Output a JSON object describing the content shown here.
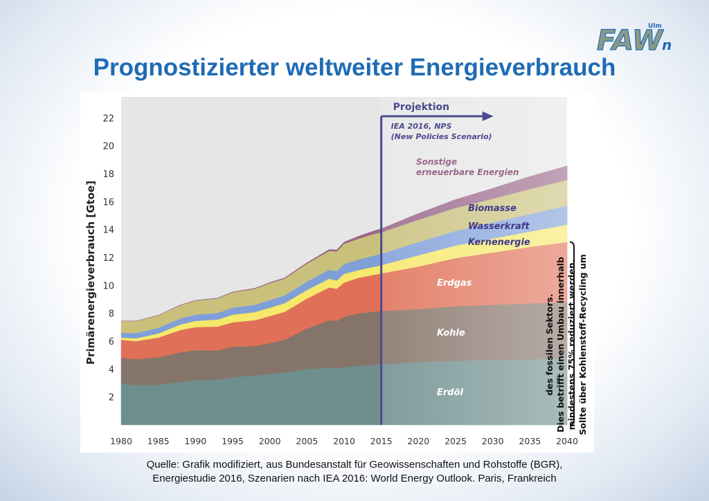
{
  "title": "Prognostizierter weltweiter Energieverbrauch",
  "logo": {
    "text": "FAW",
    "suffix": "n",
    "superscript": "Ulm",
    "color": "#1f6bb5",
    "accent": "#8a9a86"
  },
  "source": {
    "line1": "Quelle: Grafik modifiziert, aus Bundesanstalt für Geowissenschaften und Rohstoffe (BGR),",
    "line2": "Energiestudie 2016, Szenarien nach IEA 2016: World Energy Outlook. Paris, Frankreich"
  },
  "chart_data": {
    "type": "area",
    "stacked": true,
    "ylabel": "Primärenergieverbrauch [Gtoe]",
    "xlabel": "",
    "x": [
      1980,
      1982,
      1985,
      1988,
      1990,
      1993,
      1995,
      1998,
      2000,
      2002,
      2005,
      2008,
      2009,
      2010,
      2012,
      2014,
      2015,
      2020,
      2025,
      2030,
      2035,
      2040
    ],
    "xlim": [
      1980,
      2040
    ],
    "ylim": [
      0,
      23.5
    ],
    "yticks": [
      2,
      4,
      6,
      8,
      10,
      12,
      14,
      16,
      18,
      20,
      22
    ],
    "xticks": [
      1980,
      1985,
      1990,
      1995,
      2000,
      2005,
      2010,
      2015,
      2020,
      2025,
      2030,
      2035,
      2040
    ],
    "grid": false,
    "projection": {
      "start": 2015,
      "label": "Projektion",
      "scenario_line1": "IEA 2016, NPS",
      "scenario_line2": "(New Policies Scenario)",
      "color": "#4a4a8f"
    },
    "series": [
      {
        "name": "Erdöl",
        "color": "#6f8f8e",
        "values": [
          3.0,
          2.85,
          2.85,
          3.1,
          3.2,
          3.25,
          3.4,
          3.55,
          3.65,
          3.75,
          4.0,
          4.1,
          4.0,
          4.15,
          4.25,
          4.3,
          4.35,
          4.5,
          4.6,
          4.65,
          4.7,
          4.75
        ]
      },
      {
        "name": "Kohle",
        "color": "#857469",
        "values": [
          1.8,
          1.85,
          2.0,
          2.1,
          2.15,
          2.1,
          2.2,
          2.1,
          2.2,
          2.35,
          2.9,
          3.4,
          3.45,
          3.6,
          3.75,
          3.8,
          3.8,
          3.8,
          3.9,
          3.95,
          4.0,
          4.05
        ]
      },
      {
        "name": "Erdgas",
        "color": "#e07158",
        "values": [
          1.3,
          1.3,
          1.4,
          1.6,
          1.65,
          1.7,
          1.75,
          1.85,
          1.95,
          2.0,
          2.15,
          2.35,
          2.3,
          2.45,
          2.55,
          2.65,
          2.7,
          3.05,
          3.45,
          3.75,
          4.05,
          4.3
        ]
      },
      {
        "name": "Kernenergie",
        "color": "#f6e86a",
        "values": [
          0.15,
          0.2,
          0.3,
          0.4,
          0.45,
          0.5,
          0.55,
          0.58,
          0.6,
          0.62,
          0.62,
          0.62,
          0.6,
          0.62,
          0.55,
          0.58,
          0.6,
          0.8,
          0.9,
          1.0,
          1.1,
          1.25
        ]
      },
      {
        "name": "Wasserkraft",
        "color": "#7f9fd9",
        "values": [
          0.35,
          0.37,
          0.4,
          0.43,
          0.45,
          0.47,
          0.5,
          0.52,
          0.55,
          0.55,
          0.6,
          0.65,
          0.67,
          0.7,
          0.75,
          0.8,
          0.8,
          0.95,
          1.05,
          1.15,
          1.25,
          1.35
        ]
      },
      {
        "name": "Biomasse",
        "color": "#c9c07c",
        "values": [
          0.85,
          0.87,
          0.9,
          0.95,
          1.0,
          1.05,
          1.1,
          1.15,
          1.2,
          1.22,
          1.28,
          1.35,
          1.4,
          1.45,
          1.5,
          1.55,
          1.55,
          1.6,
          1.65,
          1.7,
          1.8,
          1.85
        ]
      },
      {
        "name": "Sonstige erneuerbare Energien",
        "color": "#9a668a",
        "values": [
          0.0,
          0.0,
          0.01,
          0.02,
          0.02,
          0.03,
          0.03,
          0.04,
          0.05,
          0.05,
          0.07,
          0.1,
          0.12,
          0.13,
          0.18,
          0.22,
          0.25,
          0.45,
          0.6,
          0.75,
          0.9,
          1.0
        ]
      }
    ],
    "series_labels": {
      "sonstige_line1": "Sonstige",
      "sonstige_line2": "erneuerbare Energien",
      "biomasse": "Biomasse",
      "wasserkraft": "Wasserkraft",
      "kernenergie": "Kernenergie",
      "erdgas": "Erdgas",
      "kohle": "Kohle",
      "erdoel": "Erdöl"
    },
    "annotation": {
      "line1": "Sollte über Kohlenstoff-Recycling um",
      "line2": "mindestens 75% reduziert werden.",
      "line3": "Dies betrifft einen Umbau innerhalb",
      "line4": "des fossilen Sektors."
    }
  }
}
